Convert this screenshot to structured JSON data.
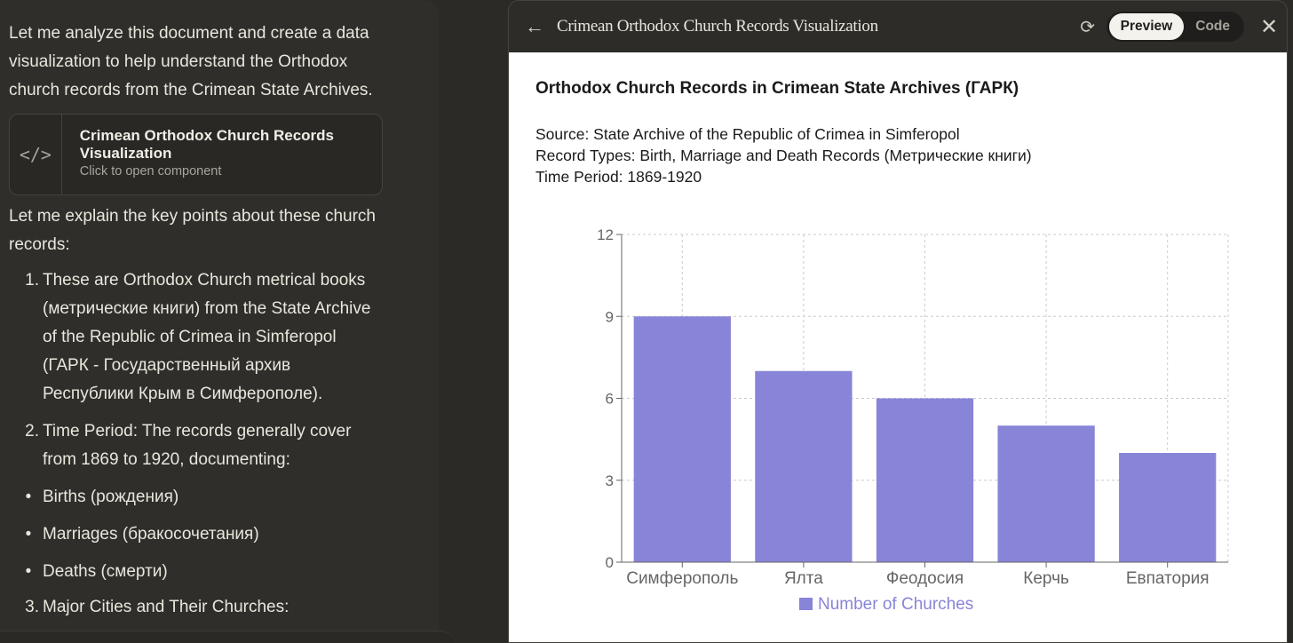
{
  "chat": {
    "intro": "Let me analyze this document and create a data visualization to help understand the Orthodox church records from the Crimean State Archives.",
    "artifact_card": {
      "icon": "</>",
      "title": "Crimean Orthodox Church Records Visualization",
      "subtitle": "Click to open component"
    },
    "explain": "Let me explain the key points about these church records:",
    "items": [
      {
        "marker": "1.",
        "text": "These are Orthodox Church metrical books (метрические книги) from the State Archive of the Republic of Crimea in Simferopol (ГАРК - Государственный архив Республики Крым в Симферополе)."
      },
      {
        "marker": "2.",
        "text": "Time Period: The records generally cover from 1869 to 1920, documenting:"
      }
    ],
    "bullets": [
      "Births (рождения)",
      "Marriages (бракосочетания)",
      "Deaths (смерти)"
    ],
    "item3": {
      "marker": "3.",
      "text": "Major Cities and Their Churches:"
    }
  },
  "panel": {
    "title": "Crimean Orthodox Church Records Visualization",
    "toggle": {
      "preview": "Preview",
      "code": "Code"
    }
  },
  "content": {
    "heading": "Orthodox Church Records in Crimean State Archives (ГАРК)",
    "source": "Source: State Archive of the Republic of Crimea in Simferopol",
    "record_types": "Record Types: Birth, Marriage and Death Records (Метрические книги)",
    "time_period": "Time Period: 1869-1920"
  },
  "chart_data": {
    "type": "bar",
    "categories": [
      "Симферополь",
      "Ялта",
      "Феодосия",
      "Керчь",
      "Евпатория"
    ],
    "series": [
      {
        "name": "Number of Churches",
        "values": [
          9,
          7,
          6,
          5,
          4
        ],
        "color": "#8884d8"
      }
    ],
    "ylim": [
      0,
      12
    ],
    "yticks": [
      0,
      3,
      6,
      9,
      12
    ],
    "grid": true,
    "legend": "bottom"
  }
}
